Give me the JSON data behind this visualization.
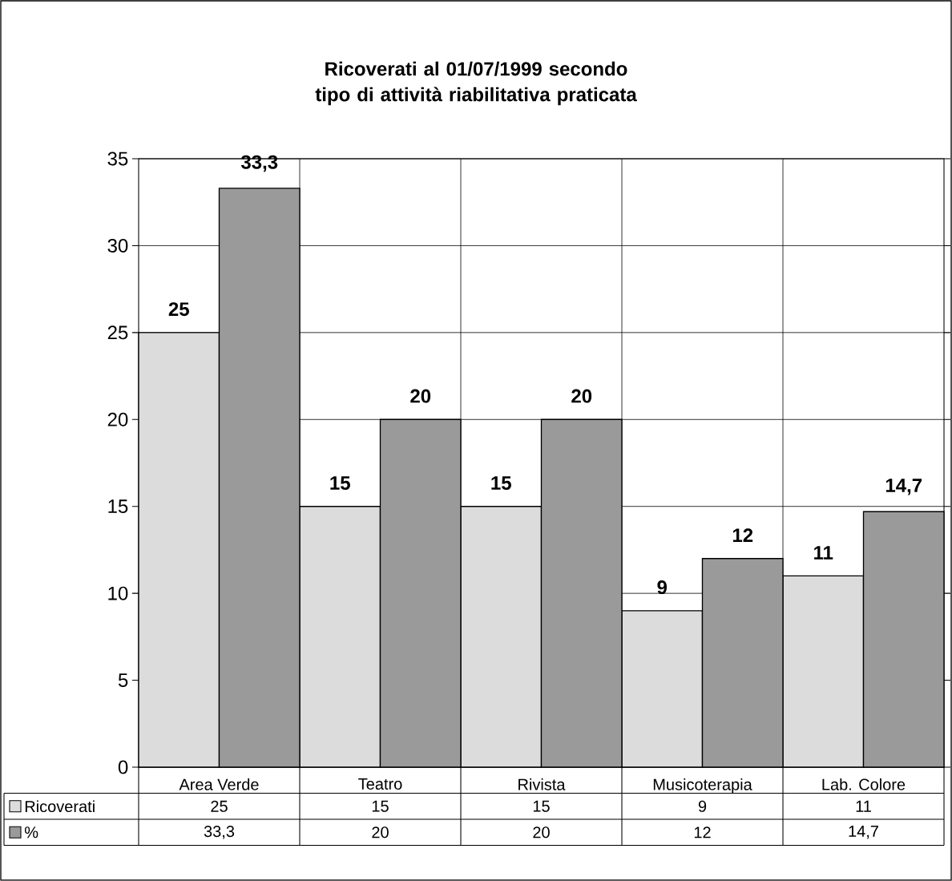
{
  "chart_data": {
    "type": "bar",
    "title": "Ricoverati al 01/07/1999 secondo tipo di attività riabilitativa praticata",
    "categories": [
      "Area Verde",
      "Teatro",
      "Rivista",
      "Musicoterapia",
      "Lab. Colore"
    ],
    "series": [
      {
        "name": "Ricoverati",
        "color": "#dcdcdc",
        "values": [
          25,
          15,
          15,
          9,
          11
        ],
        "value_labels": [
          "25",
          "15",
          "15",
          "9",
          "11"
        ]
      },
      {
        "name": "%",
        "color": "#9a9a9a",
        "values": [
          33.3,
          20,
          20,
          12,
          14.7
        ],
        "value_labels": [
          "33,3",
          "20",
          "20",
          "12",
          "14,7"
        ]
      }
    ],
    "ylim": [
      0,
      35
    ],
    "yticks": [
      0,
      5,
      10,
      15,
      20,
      25,
      30,
      35
    ],
    "grid": true,
    "legend": "bottom"
  }
}
